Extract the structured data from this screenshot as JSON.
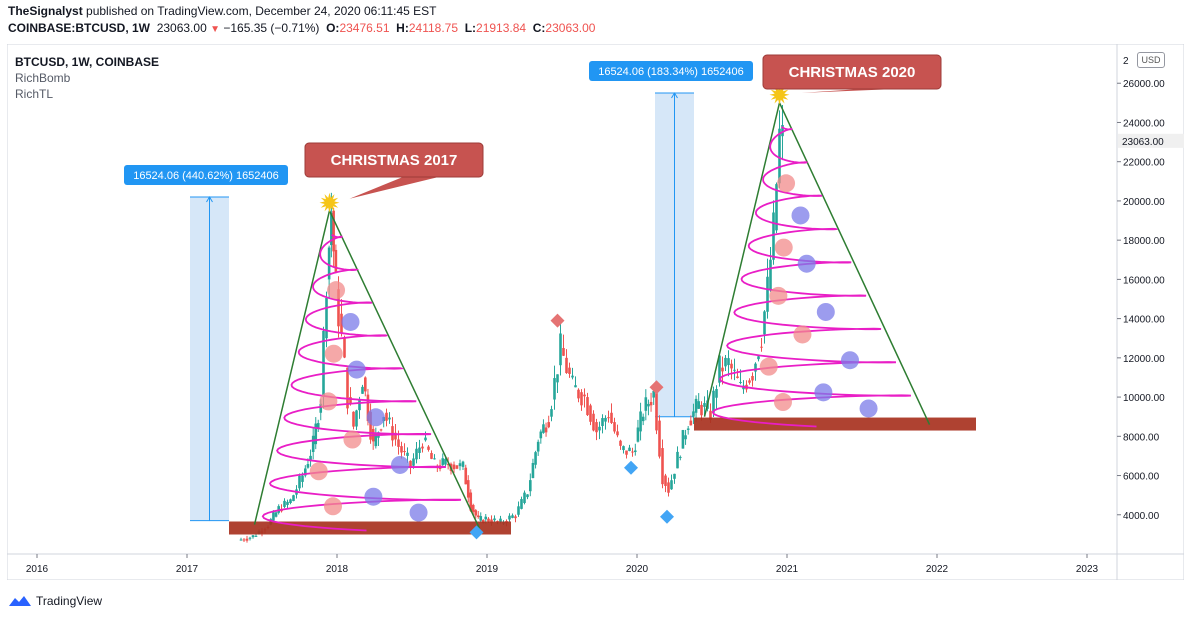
{
  "publisher": {
    "author": "TheSignalyst",
    "text": "published on TradingView.com, December 24, 2020 06:11:45 EST"
  },
  "ohlc": {
    "symbol": "COINBASE:BTCUSD, 1W",
    "last": "23063.00",
    "change": "−165.35 (−0.71%)",
    "o_label": "O:",
    "o": "23476.51",
    "h_label": "H:",
    "h": "24118.75",
    "l_label": "L:",
    "l": "21913.84",
    "c_label": "C:",
    "c": "23063.00"
  },
  "legend": {
    "symbol": "BTCUSD, 1W, COINBASE",
    "indicators": [
      "RichBomb",
      "RichTL"
    ]
  },
  "price_axis": {
    "currency": "USD",
    "top_partial": "2",
    "current_price": "23063.00"
  },
  "annotations": {
    "christmas_2017": "CHRISTMAS 2017",
    "christmas_2020": "CHRISTMAS 2020",
    "measure_2017": "16524.06 (440.62%) 1652406",
    "measure_2020": "16524.06 (183.34%) 1652406"
  },
  "footer": {
    "brand": "TradingView"
  },
  "colors": {
    "up": "#26a69a",
    "down": "#ef5350",
    "tree_line": "#2e7d32",
    "spiral": "#e91ec6",
    "ornament_red": "#f28b8b",
    "ornament_blue": "#7b7be8",
    "star": "#f5c518",
    "base_bar": "#a83220",
    "callout": "#c75350",
    "measure_fill": "#cfe3f7",
    "measure_label": "#2196f3",
    "diamond_red": "#e57373",
    "diamond_blue": "#42a5f5"
  },
  "chart_data": {
    "type": "candlestick",
    "title": "BTCUSD, 1W, COINBASE",
    "xlabel": "",
    "ylabel": "",
    "x_ticks": [
      2016,
      2017,
      2018,
      2019,
      2020,
      2021,
      2022,
      2023
    ],
    "x_tick_labels": [
      "2016",
      "2017",
      "2018",
      "2019",
      "2020",
      "2021",
      "2022",
      "2023"
    ],
    "y_ticks": [
      4000,
      6000,
      8000,
      10000,
      12000,
      14000,
      16000,
      18000,
      20000,
      22000,
      24000,
      26000
    ],
    "y_tick_labels": [
      "4000.00",
      "6000.00",
      "8000.00",
      "10000.00",
      "12000.00",
      "14000.00",
      "16000.00",
      "18000.00",
      "20000.00",
      "22000.00",
      "24000.00",
      "26000.00"
    ],
    "ylim": [
      2000,
      28000
    ],
    "xlim": [
      2015.8,
      2023.2
    ],
    "price_path": [
      [
        2017.35,
        2700
      ],
      [
        2017.45,
        2900
      ],
      [
        2017.55,
        3500
      ],
      [
        2017.62,
        4300
      ],
      [
        2017.7,
        4700
      ],
      [
        2017.78,
        6000
      ],
      [
        2017.85,
        7600
      ],
      [
        2017.9,
        10000
      ],
      [
        2017.94,
        16000
      ],
      [
        2017.97,
        19500
      ],
      [
        2018.0,
        15500
      ],
      [
        2018.04,
        13000
      ],
      [
        2018.08,
        10000
      ],
      [
        2018.12,
        8500
      ],
      [
        2018.18,
        11000
      ],
      [
        2018.25,
        7500
      ],
      [
        2018.32,
        9200
      ],
      [
        2018.42,
        7500
      ],
      [
        2018.5,
        6500
      ],
      [
        2018.58,
        7800
      ],
      [
        2018.66,
        6500
      ],
      [
        2018.75,
        6600
      ],
      [
        2018.85,
        6400
      ],
      [
        2018.9,
        4500
      ],
      [
        2018.95,
        3700
      ],
      [
        2019.0,
        3800
      ],
      [
        2019.1,
        3600
      ],
      [
        2019.2,
        4000
      ],
      [
        2019.28,
        5200
      ],
      [
        2019.35,
        7900
      ],
      [
        2019.42,
        9000
      ],
      [
        2019.5,
        12500
      ],
      [
        2019.58,
        10500
      ],
      [
        2019.66,
        10000
      ],
      [
        2019.74,
        8300
      ],
      [
        2019.82,
        9200
      ],
      [
        2019.9,
        7300
      ],
      [
        2019.98,
        7200
      ],
      [
        2020.05,
        9300
      ],
      [
        2020.12,
        10200
      ],
      [
        2020.18,
        6000
      ],
      [
        2020.22,
        5300
      ],
      [
        2020.28,
        6900
      ],
      [
        2020.35,
        8800
      ],
      [
        2020.42,
        9600
      ],
      [
        2020.5,
        9200
      ],
      [
        2020.56,
        11500
      ],
      [
        2020.62,
        11700
      ],
      [
        2020.7,
        10400
      ],
      [
        2020.78,
        11300
      ],
      [
        2020.84,
        13200
      ],
      [
        2020.88,
        15500
      ],
      [
        2020.92,
        18500
      ],
      [
        2020.96,
        23300
      ],
      [
        2020.98,
        23063
      ]
    ],
    "tree_2017": {
      "apex": [
        2017.95,
        19500
      ],
      "base_left": [
        2017.45,
        3500
      ],
      "base_right": [
        2018.95,
        3300
      ],
      "base_level": 3300
    },
    "tree_2020": {
      "apex": [
        2020.95,
        25000
      ],
      "base_left": [
        2020.45,
        9000
      ],
      "base_right": [
        2021.95,
        8600
      ],
      "base_level": 8600
    },
    "measures": [
      {
        "x_start": 2017.02,
        "x_end": 2017.28,
        "from": 3700,
        "to": 20200,
        "label": "16524.06 (440.62%) 1652406"
      },
      {
        "x_start": 2020.12,
        "x_end": 2020.38,
        "from": 9000,
        "to": 25500,
        "label": "16524.06 (183.34%) 1652406"
      }
    ],
    "diamonds": [
      {
        "x": 2019.47,
        "y": 13900,
        "kind": "red"
      },
      {
        "x": 2020.13,
        "y": 10500,
        "kind": "red"
      },
      {
        "x": 2019.96,
        "y": 6400,
        "kind": "blue"
      },
      {
        "x": 2020.2,
        "y": 3900,
        "kind": "blue"
      },
      {
        "x": 2018.93,
        "y": 3100,
        "kind": "blue"
      }
    ]
  }
}
